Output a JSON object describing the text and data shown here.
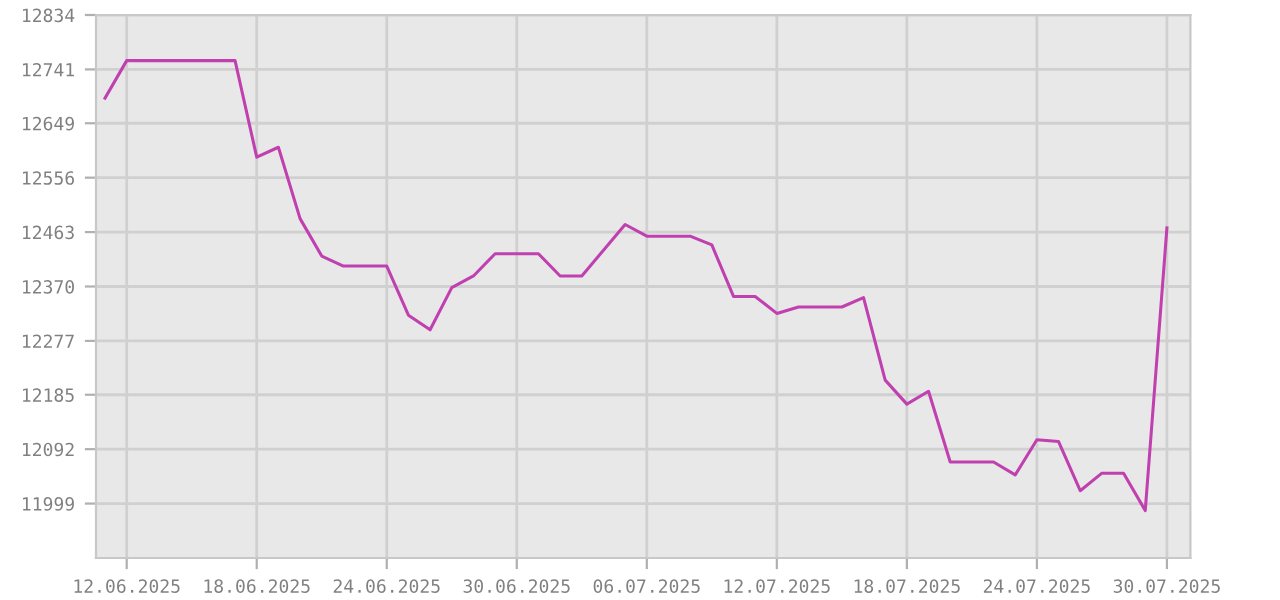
{
  "chart_data": {
    "type": "line",
    "x": [
      "2025-06-11",
      "2025-06-12",
      "2025-06-13",
      "2025-06-14",
      "2025-06-15",
      "2025-06-16",
      "2025-06-17",
      "2025-06-18",
      "2025-06-19",
      "2025-06-20",
      "2025-06-21",
      "2025-06-22",
      "2025-06-23",
      "2025-06-24",
      "2025-06-25",
      "2025-06-26",
      "2025-06-27",
      "2025-06-28",
      "2025-06-29",
      "2025-06-30",
      "2025-07-01",
      "2025-07-02",
      "2025-07-03",
      "2025-07-04",
      "2025-07-05",
      "2025-07-06",
      "2025-07-07",
      "2025-07-08",
      "2025-07-09",
      "2025-07-10",
      "2025-07-11",
      "2025-07-12",
      "2025-07-13",
      "2025-07-14",
      "2025-07-15",
      "2025-07-16",
      "2025-07-17",
      "2025-07-18",
      "2025-07-19",
      "2025-07-20",
      "2025-07-21",
      "2025-07-22",
      "2025-07-23",
      "2025-07-24",
      "2025-07-25",
      "2025-07-26",
      "2025-07-27",
      "2025-07-28",
      "2025-07-29",
      "2025-07-30"
    ],
    "series": [
      {
        "color": "#c040b0",
        "values": [
          12692,
          12756,
          12756,
          12756,
          12756,
          12756,
          12756,
          12591,
          12608,
          12486,
          12422,
          12405,
          12405,
          12405,
          12321,
          12296,
          12368,
          12388,
          12426,
          12426,
          12426,
          12388,
          12388,
          12432,
          12476,
          12456,
          12456,
          12456,
          12441,
          12353,
          12353,
          12324,
          12335,
          12335,
          12335,
          12351,
          12210,
          12169,
          12191,
          12070,
          12070,
          12070,
          12048,
          12108,
          12105,
          12021,
          12051,
          12051,
          11987,
          12470
        ]
      }
    ],
    "xlim": [
      "2025-06-10T14:00",
      "2025-07-31T02:00"
    ],
    "xticks": [
      {
        "value": "2025-06-12",
        "label": "12.06.2025"
      },
      {
        "value": "2025-06-18",
        "label": "18.06.2025"
      },
      {
        "value": "2025-06-24",
        "label": "24.06.2025"
      },
      {
        "value": "2025-06-30",
        "label": "30.06.2025"
      },
      {
        "value": "2025-07-06",
        "label": "06.07.2025"
      },
      {
        "value": "2025-07-12",
        "label": "12.07.2025"
      },
      {
        "value": "2025-07-18",
        "label": "18.07.2025"
      },
      {
        "value": "2025-07-24",
        "label": "24.07.2025"
      },
      {
        "value": "2025-07-30",
        "label": "30.07.2025"
      }
    ],
    "ylim": [
      11906,
      12834
    ],
    "yticks": [
      11999,
      12092,
      12185,
      12277,
      12370,
      12463,
      12556,
      12649,
      12741,
      12834
    ],
    "grid": true,
    "marker": "none",
    "line_style": "solid"
  }
}
